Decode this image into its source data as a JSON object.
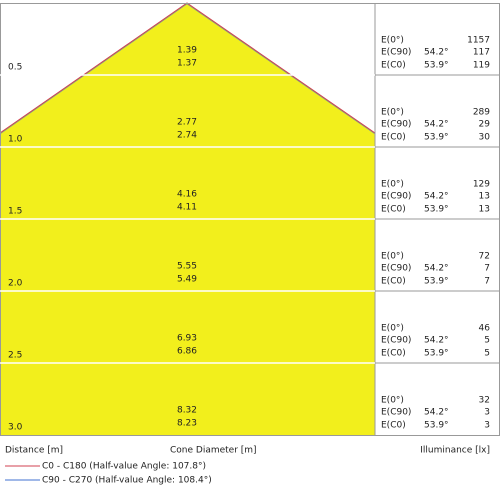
{
  "rows": [
    {
      "distance": "0.5",
      "diameter_c0": "1.39",
      "diameter_c90": "1.37",
      "e0": "1157",
      "c90_angle": "54.2°",
      "c90": "117",
      "c0_angle": "53.9°",
      "c0": "119"
    },
    {
      "distance": "1.0",
      "diameter_c0": "2.77",
      "diameter_c90": "2.74",
      "e0": "289",
      "c90_angle": "54.2°",
      "c90": "29",
      "c0_angle": "53.9°",
      "c0": "30"
    },
    {
      "distance": "1.5",
      "diameter_c0": "4.16",
      "diameter_c90": "4.11",
      "e0": "129",
      "c90_angle": "54.2°",
      "c90": "13",
      "c0_angle": "53.9°",
      "c0": "13"
    },
    {
      "distance": "2.0",
      "diameter_c0": "5.55",
      "diameter_c90": "5.49",
      "e0": "72",
      "c90_angle": "54.2°",
      "c90": "7",
      "c0_angle": "53.9°",
      "c0": "7"
    },
    {
      "distance": "2.5",
      "diameter_c0": "6.93",
      "diameter_c90": "6.86",
      "e0": "46",
      "c90_angle": "54.2°",
      "c90": "5",
      "c0_angle": "53.9°",
      "c0": "5"
    },
    {
      "distance": "3.0",
      "diameter_c0": "8.32",
      "diameter_c90": "8.23",
      "e0": "32",
      "c90_angle": "54.2°",
      "c90": "3",
      "c0_angle": "53.9°",
      "c0": "3"
    }
  ],
  "illuminance_labels": {
    "e0": "E(0°)",
    "c90": "E(C90)",
    "c0": "E(C0)"
  },
  "footer": {
    "distance": "Distance [m]",
    "diameter": "Cone Diameter [m]",
    "illuminance": "Illuminance [lx]"
  },
  "legend": [
    {
      "name": "C0 - C180 (Half-value Angle: 107.8°)",
      "color": "#d04050"
    },
    {
      "name": "C90 - C270 (Half-value Angle: 108.4°)",
      "color": "#4070d0"
    }
  ]
}
